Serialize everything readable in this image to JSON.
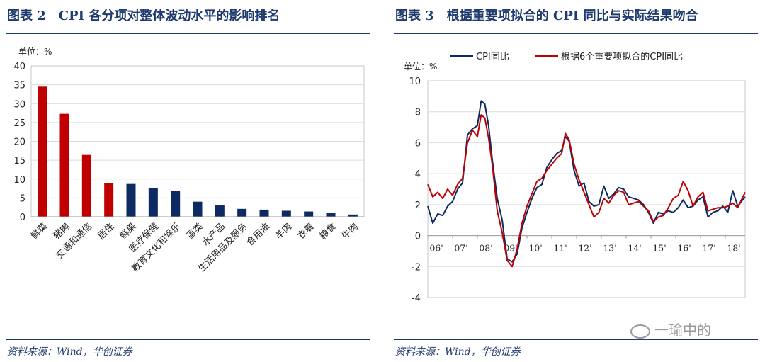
{
  "left": {
    "title": "图表 2　CPI 各分项对整体波动水平的影响排名",
    "source": "资料来源：Wind，华创证券",
    "unit": "单位：%"
  },
  "right": {
    "title": "图表 3　根据重要项拟合的 CPI 同比与实际结果吻合",
    "source": "资料来源：Wind，华创证券",
    "unit": "单位：%"
  },
  "watermark": "一瑜中的",
  "chart_data": [
    {
      "type": "bar",
      "categories": [
        "鲜菜",
        "猪肉",
        "交通和通信",
        "居住",
        "鲜果",
        "医疗保健",
        "教育文化和娱乐",
        "蛋类",
        "水产品",
        "生活用品及服务",
        "食用油",
        "羊肉",
        "衣着",
        "粮食",
        "牛肉"
      ],
      "values": [
        34.5,
        27.3,
        16.4,
        8.9,
        8.7,
        7.7,
        6.8,
        4.0,
        3.0,
        2.1,
        1.9,
        1.6,
        1.4,
        1.0,
        0.6
      ],
      "highlight_count": 4,
      "ylim": [
        0,
        40
      ],
      "yticks": [
        0,
        5,
        10,
        15,
        20,
        25,
        30,
        35,
        40
      ],
      "colors": {
        "highlight": "#c00000",
        "normal": "#0d2a62"
      }
    },
    {
      "type": "line",
      "ylim": [
        -4,
        10
      ],
      "yticks": [
        -4,
        -2,
        0,
        2,
        4,
        6,
        8,
        10
      ],
      "xlim": [
        2006.0,
        2018.8
      ],
      "xticks": [
        2006,
        2007,
        2008,
        2009,
        2010,
        2011,
        2012,
        2013,
        2014,
        2015,
        2016,
        2017,
        2018
      ],
      "xtick_labels": [
        "06'",
        "07'",
        "08'",
        "09'",
        "10'",
        "11'",
        "12'",
        "13'",
        "14'",
        "15'",
        "16'",
        "17'",
        "18'"
      ],
      "legend_position": "top",
      "series": [
        {
          "name": "CPI同比",
          "color": "#0d2a62",
          "x": [
            2006.0,
            2006.2,
            2006.4,
            2006.6,
            2006.8,
            2007.0,
            2007.2,
            2007.4,
            2007.6,
            2007.8,
            2008.0,
            2008.15,
            2008.3,
            2008.45,
            2008.6,
            2008.8,
            2009.0,
            2009.2,
            2009.4,
            2009.6,
            2009.8,
            2010.0,
            2010.2,
            2010.4,
            2010.6,
            2010.8,
            2011.0,
            2011.2,
            2011.4,
            2011.55,
            2011.7,
            2011.9,
            2012.1,
            2012.3,
            2012.5,
            2012.7,
            2012.9,
            2013.1,
            2013.3,
            2013.5,
            2013.7,
            2013.9,
            2014.1,
            2014.3,
            2014.5,
            2014.7,
            2014.9,
            2015.1,
            2015.3,
            2015.5,
            2015.7,
            2015.9,
            2016.1,
            2016.3,
            2016.5,
            2016.7,
            2016.9,
            2017.1,
            2017.3,
            2017.5,
            2017.7,
            2017.9,
            2018.1,
            2018.3,
            2018.5,
            2018.8
          ],
          "y": [
            1.9,
            0.8,
            1.4,
            1.3,
            1.9,
            2.2,
            3.0,
            3.4,
            6.5,
            6.9,
            7.1,
            8.7,
            8.5,
            7.1,
            4.9,
            2.4,
            1.0,
            -1.5,
            -1.7,
            -1.2,
            0.5,
            1.5,
            2.4,
            3.1,
            3.3,
            4.4,
            4.9,
            5.3,
            5.5,
            6.4,
            6.1,
            4.2,
            3.2,
            3.4,
            2.2,
            1.9,
            2.0,
            3.2,
            2.4,
            2.7,
            3.1,
            3.0,
            2.5,
            2.4,
            2.3,
            2.0,
            1.5,
            0.8,
            1.5,
            1.4,
            1.6,
            1.5,
            1.8,
            2.3,
            1.8,
            1.9,
            2.3,
            2.5,
            1.2,
            1.5,
            1.6,
            1.9,
            1.5,
            2.9,
            1.9,
            2.5
          ]
        },
        {
          "name": "根据6个重要项拟合的CPI同比",
          "color": "#c00000",
          "x": [
            2006.0,
            2006.2,
            2006.4,
            2006.6,
            2006.8,
            2007.0,
            2007.2,
            2007.4,
            2007.6,
            2007.8,
            2008.0,
            2008.15,
            2008.3,
            2008.45,
            2008.6,
            2008.8,
            2009.0,
            2009.2,
            2009.4,
            2009.6,
            2009.8,
            2010.0,
            2010.2,
            2010.4,
            2010.6,
            2010.8,
            2011.0,
            2011.2,
            2011.4,
            2011.55,
            2011.7,
            2011.9,
            2012.1,
            2012.3,
            2012.5,
            2012.7,
            2012.9,
            2013.1,
            2013.3,
            2013.5,
            2013.7,
            2013.9,
            2014.1,
            2014.3,
            2014.5,
            2014.7,
            2014.9,
            2015.1,
            2015.3,
            2015.5,
            2015.7,
            2015.9,
            2016.1,
            2016.3,
            2016.5,
            2016.7,
            2016.9,
            2017.1,
            2017.3,
            2017.5,
            2017.7,
            2017.9,
            2018.1,
            2018.3,
            2018.5,
            2018.8
          ],
          "y": [
            3.3,
            2.5,
            2.8,
            2.4,
            3.0,
            2.6,
            3.3,
            3.7,
            6.0,
            6.8,
            6.4,
            7.8,
            7.6,
            6.3,
            4.6,
            1.6,
            0.2,
            -1.6,
            -2.0,
            -0.9,
            0.8,
            1.9,
            2.7,
            3.5,
            3.7,
            4.2,
            4.6,
            5.0,
            5.3,
            6.6,
            6.2,
            4.6,
            3.6,
            2.8,
            2.0,
            1.2,
            1.5,
            2.4,
            2.1,
            2.6,
            2.9,
            2.8,
            2.0,
            2.1,
            2.2,
            1.9,
            1.6,
            0.9,
            1.2,
            1.3,
            1.8,
            2.4,
            2.6,
            3.5,
            2.9,
            1.9,
            2.5,
            2.8,
            1.6,
            1.7,
            1.8,
            1.8,
            1.9,
            2.1,
            1.8,
            2.8
          ]
        }
      ]
    }
  ]
}
